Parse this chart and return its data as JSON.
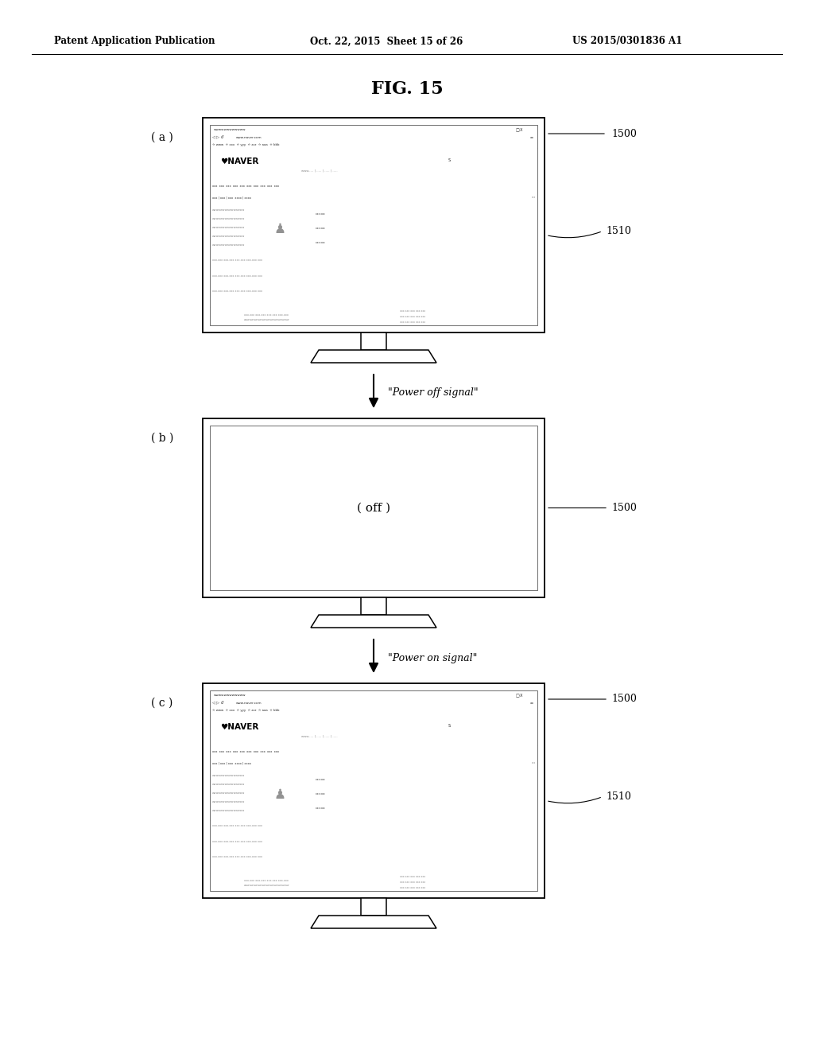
{
  "bg_color": "#ffffff",
  "title": "FIG. 15",
  "header_left": "Patent Application Publication",
  "header_center": "Oct. 22, 2015  Sheet 15 of 26",
  "header_right": "US 2015/0301836 A1",
  "label_a": "( a )",
  "label_b": "( b )",
  "label_c": "( c )",
  "label_off": "( off )",
  "arrow1_label": "\"Power off signal\"",
  "arrow2_label": "\"Power on signal\"",
  "ref_1500": "1500",
  "ref_1510": "1510"
}
